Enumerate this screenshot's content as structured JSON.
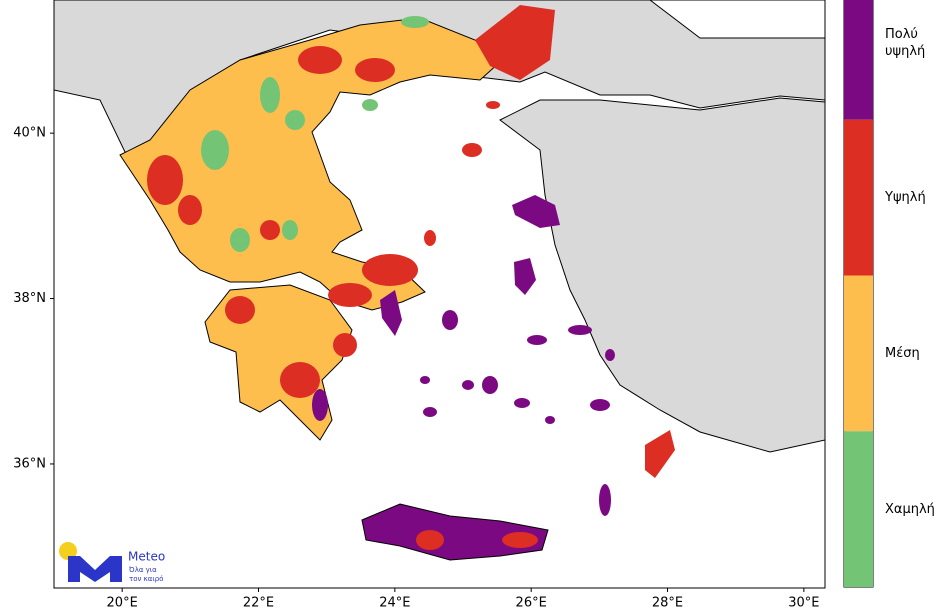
{
  "map": {
    "xlim": [
      19.0,
      30.31
    ],
    "ylim": [
      34.5,
      41.61
    ],
    "xticks": [
      {
        "value": 20,
        "label": "20°E"
      },
      {
        "value": 22,
        "label": "22°E"
      },
      {
        "value": 24,
        "label": "24°E"
      },
      {
        "value": 26,
        "label": "26°E"
      },
      {
        "value": 28,
        "label": "28°E"
      },
      {
        "value": 30,
        "label": "30°E"
      }
    ],
    "yticks": [
      {
        "value": 36,
        "label": "36°N"
      },
      {
        "value": 38,
        "label": "38°N"
      },
      {
        "value": 40,
        "label": "40°N"
      }
    ]
  },
  "legend": {
    "levels": [
      {
        "label": "Πολύ υψηλή",
        "color": "#7b0a82"
      },
      {
        "label": "Υψηλή",
        "color": "#dd2e24"
      },
      {
        "label": "Μέση",
        "color": "#fdbe4e"
      },
      {
        "label": "Χαμηλή",
        "color": "#74c476"
      }
    ]
  },
  "logo": {
    "name": "Meteo",
    "tagline_1": "Όλα για",
    "tagline_2": "τον καιρό"
  }
}
